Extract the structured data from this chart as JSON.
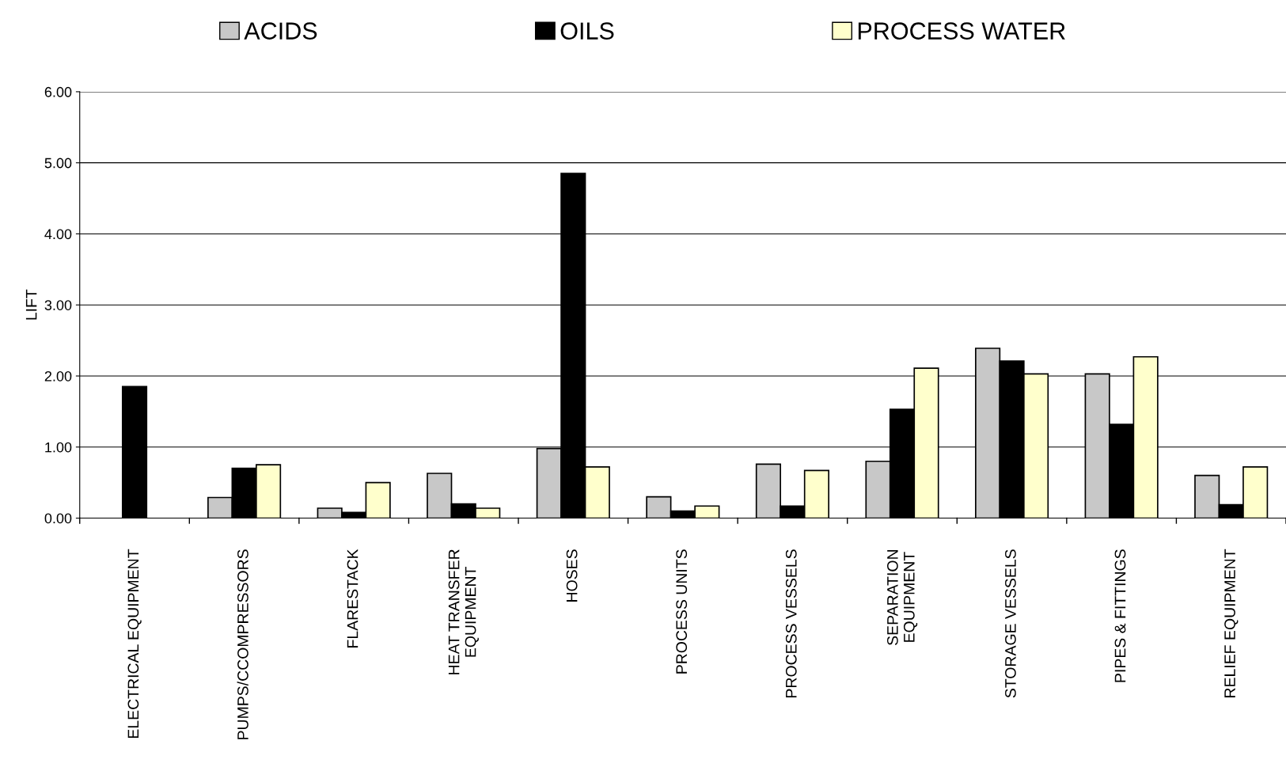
{
  "chart_data": {
    "type": "bar",
    "ylabel": "LIFT",
    "categories": [
      "ELECTRICAL EQUIPMENT",
      "PUMPS/CCOMPRESSORS",
      "FLARESTACK",
      "HEAT TRANSFER\nEQUIPMENT",
      "HOSES",
      "PROCESS UNITS",
      "PROCESS VESSELS",
      "SEPARATION\nEQUIPMENT",
      "STORAGE VESSELS",
      "PIPES & FITTINGS",
      "RELIEF EQUIPMENT"
    ],
    "series": [
      {
        "name": "ACIDS",
        "color": "#c8c8c8",
        "values": [
          null,
          0.29,
          0.14,
          0.63,
          0.98,
          0.3,
          0.76,
          0.8,
          2.39,
          2.03,
          0.6
        ]
      },
      {
        "name": "OILS",
        "color": "#000000",
        "values": [
          1.85,
          0.7,
          0.08,
          0.2,
          4.85,
          0.1,
          0.17,
          1.53,
          2.21,
          1.32,
          0.19
        ]
      },
      {
        "name": "PROCESS WATER",
        "color": "#ffffcc",
        "values": [
          null,
          0.75,
          0.5,
          0.14,
          0.72,
          0.17,
          0.67,
          2.11,
          2.03,
          2.27,
          0.72
        ]
      }
    ],
    "ylim": [
      0,
      6
    ],
    "yticks": [
      {
        "value": 0,
        "label": "0.00"
      },
      {
        "value": 1,
        "label": "1.00"
      },
      {
        "value": 2,
        "label": "2.00"
      },
      {
        "value": 3,
        "label": "3.00"
      },
      {
        "value": 4,
        "label": "4.00"
      },
      {
        "value": 5,
        "label": "5.00"
      },
      {
        "value": 6,
        "label": "6.00"
      }
    ],
    "grid": "y",
    "legend": "top"
  }
}
